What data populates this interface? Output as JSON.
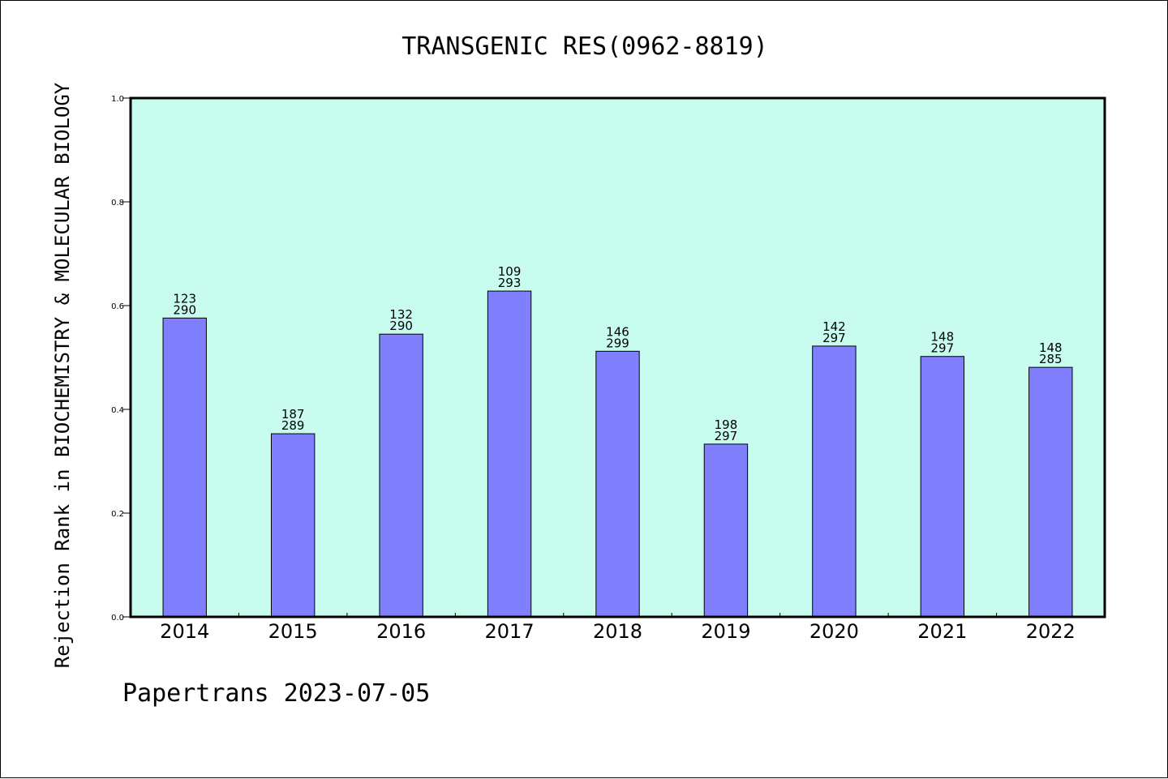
{
  "chart_data": {
    "type": "bar",
    "title": "TRANSGENIC RES(0962-8819)",
    "ylabel": "Rejection Rank in BIOCHEMISTRY & MOLECULAR BIOLOGY",
    "xlabel": "",
    "ylim": [
      0,
      1.0
    ],
    "yticks": [
      "0.0",
      "0.2",
      "0.4",
      "0.6",
      "0.8",
      "1.0"
    ],
    "grid": false,
    "categories": [
      "2014",
      "2015",
      "2016",
      "2017",
      "2018",
      "2019",
      "2020",
      "2021",
      "2022"
    ],
    "values": [
      0.576,
      0.353,
      0.545,
      0.628,
      0.512,
      0.333,
      0.522,
      0.502,
      0.481
    ],
    "data_labels": [
      [
        "123",
        "290"
      ],
      [
        "187",
        "289"
      ],
      [
        "132",
        "290"
      ],
      [
        "109",
        "293"
      ],
      [
        "146",
        "299"
      ],
      [
        "198",
        "297"
      ],
      [
        "142",
        "297"
      ],
      [
        "148",
        "297"
      ],
      [
        "148",
        "285"
      ]
    ],
    "colors": {
      "plot_background": "#c8fcee",
      "bar_fill": "#8080ff",
      "bar_stroke": "#000000"
    }
  },
  "footer": "Papertrans 2023-07-05"
}
